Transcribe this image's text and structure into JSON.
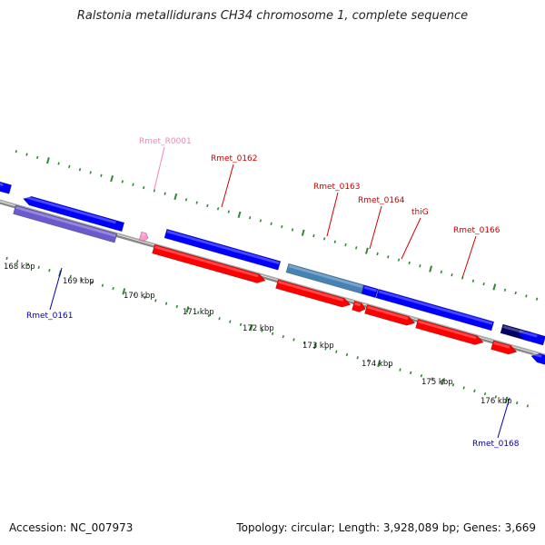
{
  "title": "Ralstonia metallidurans CH34 chromosome 1, complete sequence",
  "footer": {
    "accession": "Accession: NC_007973",
    "summary": "Topology: circular; Length: 3,928,089 bp; Genes: 3,669"
  },
  "colors": {
    "backbone": "#888888",
    "tick": "#2e8b2e",
    "forward_cds": "#0000ff",
    "reverse_cds": "#ff0000",
    "pseudo_or_other": "#6a5acd",
    "rna": "#ff99cc",
    "steelblue": "#4682b4",
    "navy": "#000066",
    "label_forward": "#0000aa",
    "label_reverse": "#cc0000",
    "label_rna": "#ee88bb"
  },
  "kbp_ticks": [
    {
      "label": "168 kbp"
    },
    {
      "label": "169 kbp"
    },
    {
      "label": "170 kbp"
    },
    {
      "label": "171 kbp"
    },
    {
      "label": "172 kbp"
    },
    {
      "label": "173 kbp"
    },
    {
      "label": "174 kbp"
    },
    {
      "label": "175 kbp"
    },
    {
      "label": "176 kbp"
    }
  ],
  "gene_labels": [
    {
      "text": "Rmet_R0001",
      "type": "rna"
    },
    {
      "text": "Rmet_0162",
      "type": "reverse"
    },
    {
      "text": "Rmet_0163",
      "type": "reverse"
    },
    {
      "text": "Rmet_0164",
      "type": "reverse"
    },
    {
      "text": "thiG",
      "type": "reverse"
    },
    {
      "text": "Rmet_0166",
      "type": "reverse"
    },
    {
      "text": "Rmet_0161",
      "type": "forward"
    },
    {
      "text": "Rmet_0168",
      "type": "forward"
    }
  ]
}
